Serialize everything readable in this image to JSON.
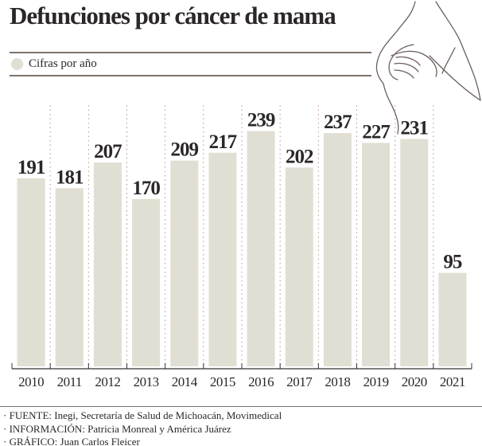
{
  "chart_data": {
    "type": "bar",
    "title": "Defunciones por cáncer de mama",
    "legend": {
      "label": "Cifras por año",
      "placement": "top-left"
    },
    "categories": [
      "2010",
      "2011",
      "2012",
      "2013",
      "2014",
      "2015",
      "2016",
      "2017",
      "2018",
      "2019",
      "2020",
      "2021"
    ],
    "values": [
      191,
      181,
      207,
      170,
      209,
      217,
      239,
      202,
      237,
      227,
      231,
      95
    ],
    "data_labels": true,
    "ylim": [
      0,
      250
    ],
    "grid": "dotted vertical separators",
    "colors": {
      "bar": "#e1ded3",
      "text": "#2b2728",
      "line": "#7d716d",
      "grid": "#b98f8f"
    }
  },
  "footer": {
    "fuente": "FUENTE: Inegi, Secretaría de Salud de Michoacán, Movimedical",
    "informacion": " INFORMACIÓN: Patricia Monreal y América Juárez",
    "grafico": "GRÁFICO: Juan Carlos Fleicer"
  },
  "illustration": "woman-breast-self-exam-line-drawing"
}
